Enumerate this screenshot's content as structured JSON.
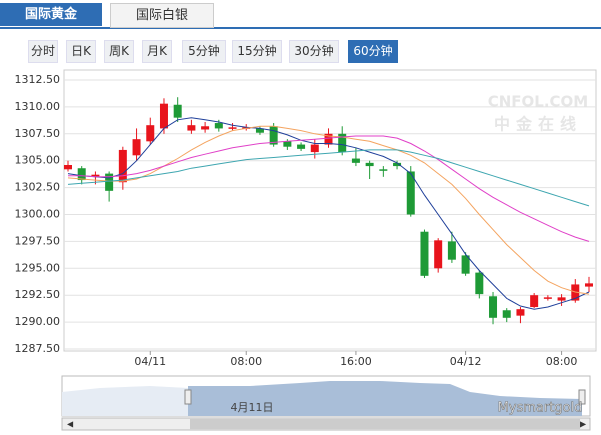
{
  "tabs": [
    "国际黄金",
    "国际白银"
  ],
  "periods": [
    "分时",
    "日K",
    "周K",
    "月K",
    "5分钟",
    "15分钟",
    "30分钟",
    "60分钟"
  ],
  "watermark": "CNFOL.COM",
  "watermark_sub": "中金在线",
  "navigator_label": "4月11日",
  "credit": "Mysmartgold",
  "chart_data": {
    "type": "candlestick",
    "categories": [
      null,
      null,
      null,
      null,
      null,
      null,
      "04/11",
      null,
      null,
      null,
      null,
      null,
      null,
      "08:00",
      null,
      null,
      null,
      null,
      null,
      null,
      null,
      "16:00",
      null,
      null,
      null,
      null,
      null,
      null,
      null,
      "04/12",
      null,
      null,
      null,
      null,
      null,
      null,
      "08:00",
      null,
      null
    ],
    "open": [
      1304.2,
      1304.3,
      1303.5,
      1303.8,
      1303.0,
      1305.5,
      1306.8,
      1308.0,
      1310.2,
      1307.8,
      1307.9,
      1308.5,
      1308.0,
      1308.0,
      1308.0,
      1308.2,
      1306.8,
      1306.5,
      1305.8,
      1306.5,
      1307.5,
      1305.2,
      1304.8,
      1304.2,
      1304.8,
      1304.0,
      1298.4,
      1295.0,
      1297.5,
      1296.2,
      1294.6,
      1292.4,
      1291.1,
      1290.6,
      1291.4,
      1292.2,
      1292.0,
      1292.0,
      1293.3
    ],
    "high": [
      1305.0,
      1304.5,
      1304.0,
      1304.0,
      1306.3,
      1308.0,
      1309.0,
      1310.8,
      1310.9,
      1308.8,
      1308.6,
      1308.8,
      1308.5,
      1308.4,
      1308.2,
      1308.5,
      1307.0,
      1306.7,
      1307.0,
      1308.0,
      1308.2,
      1306.2,
      1305.0,
      1304.5,
      1305.0,
      1304.5,
      1298.6,
      1297.8,
      1298.4,
      1296.5,
      1294.8,
      1292.8,
      1291.3,
      1291.4,
      1292.7,
      1292.5,
      1292.6,
      1294.0,
      1294.2
    ],
    "low": [
      1304.0,
      1302.8,
      1302.8,
      1301.2,
      1302.3,
      1305.0,
      1306.5,
      1307.5,
      1308.6,
      1307.5,
      1307.6,
      1307.7,
      1307.8,
      1307.8,
      1307.4,
      1306.3,
      1306.0,
      1305.9,
      1305.2,
      1306.2,
      1305.5,
      1304.5,
      1303.3,
      1303.5,
      1304.2,
      1299.8,
      1294.1,
      1294.6,
      1295.5,
      1294.3,
      1292.2,
      1289.8,
      1290.0,
      1289.9,
      1291.3,
      1292.0,
      1291.5,
      1291.8,
      1292.8
    ],
    "close": [
      1304.6,
      1303.2,
      1303.7,
      1302.2,
      1306.0,
      1307.0,
      1308.3,
      1310.3,
      1309.0,
      1308.3,
      1308.2,
      1308.0,
      1308.1,
      1308.1,
      1307.6,
      1306.5,
      1306.3,
      1306.1,
      1306.5,
      1307.5,
      1305.8,
      1304.8,
      1304.5,
      1304.1,
      1304.5,
      1300.0,
      1294.3,
      1297.6,
      1295.8,
      1294.5,
      1292.6,
      1290.4,
      1290.4,
      1291.2,
      1292.5,
      1292.3,
      1292.3,
      1293.5,
      1293.6
    ],
    "up_color": "#e8141c",
    "down_color": "#1e9a36",
    "series": [
      {
        "color": "#1f3f9a",
        "values": [
          1303.8,
          1303.6,
          1303.5,
          1303.4,
          1303.8,
          1305,
          1306.5,
          1308,
          1308.8,
          1309,
          1308.8,
          1308.6,
          1308.3,
          1308.1,
          1308,
          1307.8,
          1307.4,
          1306.9,
          1306.6,
          1306.6,
          1306.5,
          1306.2,
          1305.8,
          1305.4,
          1304.8,
          1303.8,
          1301.8,
          1300,
          1298.2,
          1296.3,
          1294.8,
          1293.5,
          1292.2,
          1291.5,
          1291.2,
          1291.4,
          1291.8,
          1292.2,
          1292.8
        ]
      },
      {
        "color": "#f4a460",
        "values": [
          1303.4,
          1303.3,
          1303.2,
          1303.1,
          1303.1,
          1303.3,
          1303.8,
          1304.5,
          1305.2,
          1306,
          1306.7,
          1307.3,
          1307.8,
          1308,
          1308.2,
          1308.2,
          1308,
          1307.8,
          1307.5,
          1307.3,
          1307.2,
          1307,
          1306.8,
          1306.4,
          1306,
          1305.5,
          1304.8,
          1303.8,
          1302.8,
          1301.5,
          1300,
          1298.6,
          1297.2,
          1296,
          1294.8,
          1293.8,
          1293.2,
          1292.8,
          1292.6
        ]
      },
      {
        "color": "#e040c8",
        "values": [
          1303.6,
          1303.6,
          1303.5,
          1303.5,
          1303.6,
          1303.8,
          1304.1,
          1304.5,
          1304.9,
          1305.3,
          1305.6,
          1305.9,
          1306.2,
          1306.4,
          1306.6,
          1306.7,
          1306.8,
          1306.9,
          1307,
          1307.1,
          1307.2,
          1307.3,
          1307.3,
          1307.3,
          1307.1,
          1306.6,
          1305.9,
          1305.1,
          1304.2,
          1303.3,
          1302.4,
          1301.6,
          1300.9,
          1300.2,
          1299.6,
          1299,
          1298.4,
          1297.9,
          1297.5
        ]
      },
      {
        "color": "#3ea6b0",
        "values": [
          1302.8,
          1302.9,
          1303,
          1303.1,
          1303.2,
          1303.4,
          1303.6,
          1303.8,
          1304,
          1304.3,
          1304.5,
          1304.7,
          1304.9,
          1305.1,
          1305.2,
          1305.3,
          1305.4,
          1305.5,
          1305.6,
          1305.7,
          1305.8,
          1305.9,
          1306,
          1306,
          1306,
          1305.8,
          1305.5,
          1305.2,
          1304.8,
          1304.4,
          1304,
          1303.6,
          1303.2,
          1302.8,
          1302.4,
          1302,
          1301.6,
          1301.2,
          1300.8
        ]
      }
    ],
    "ylim": [
      1287.5,
      1312.5
    ],
    "yticks": [
      {
        "value": 1287.5,
        "label": "1287.50"
      },
      {
        "value": 1290,
        "label": "1290.00"
      },
      {
        "value": 1292.5,
        "label": "1292.50"
      },
      {
        "value": 1295,
        "label": "1295.00"
      },
      {
        "value": 1297.5,
        "label": "1297.50"
      },
      {
        "value": 1300,
        "label": "1300.00"
      },
      {
        "value": 1302.5,
        "label": "1302.50"
      },
      {
        "value": 1305,
        "label": "1305.00"
      },
      {
        "value": 1307.5,
        "label": "1307.50"
      },
      {
        "value": 1310,
        "label": "1310.00"
      },
      {
        "value": 1312.5,
        "label": "1312.50"
      }
    ],
    "grid": true
  }
}
